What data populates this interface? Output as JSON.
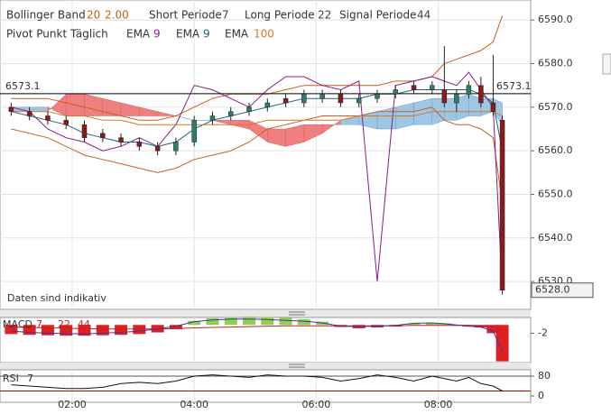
{
  "chart_data": [
    {
      "type": "candlestick",
      "header": [
        {
          "label": "Bollinger Band",
          "params": [
            "20",
            "2.00"
          ],
          "color": "#c8601b"
        },
        {
          "label": "Short Periode",
          "params": [
            "7"
          ],
          "color": "#444444"
        },
        {
          "label": "Long Periode",
          "params": [
            "22"
          ],
          "color": "#444444"
        },
        {
          "label": "Signal Periode",
          "params": [
            "44"
          ],
          "color": "#444444"
        }
      ],
      "pivot": {
        "name": "Pivot Punkt Täglich",
        "value": 6573.1,
        "color": "#000000"
      },
      "note": "Daten sind indikativ",
      "last_price": {
        "value": 6528,
        "label": "6528.0"
      },
      "x": [
        1.0,
        1.3,
        1.6,
        1.9,
        2.2,
        2.5,
        2.8,
        3.1,
        3.4,
        3.7,
        4.0,
        4.3,
        4.6,
        4.9,
        5.2,
        5.5,
        5.8,
        6.1,
        6.4,
        6.7,
        7.0,
        7.3,
        7.6,
        7.9,
        8.1,
        8.3,
        8.5,
        8.7,
        8.9,
        9.05
      ],
      "open": [
        6570,
        6569,
        6568,
        6567,
        6566,
        6564,
        6563,
        6562,
        6561,
        6560,
        6562,
        6567,
        6568,
        6569,
        6570,
        6572,
        6571,
        6572,
        6573,
        6571,
        6572,
        6573,
        6575,
        6574,
        6574,
        6571,
        6573,
        6575,
        6571,
        6567
      ],
      "high": [
        6571,
        6570,
        6569,
        6568,
        6567,
        6565,
        6564,
        6563,
        6562,
        6563,
        6568,
        6569,
        6570,
        6571,
        6572,
        6573,
        6574,
        6574,
        6574,
        6573,
        6574,
        6575,
        6576,
        6576,
        6584,
        6574,
        6576,
        6577,
        6582,
        6568
      ],
      "low": [
        6568,
        6567,
        6566,
        6565,
        6562,
        6562,
        6561,
        6560,
        6559,
        6559,
        6561,
        6566,
        6567,
        6568,
        6569,
        6570,
        6570,
        6571,
        6570,
        6570,
        6571,
        6572,
        6573,
        6573,
        6570,
        6569,
        6572,
        6570,
        6568,
        6527
      ],
      "close": [
        6569,
        6568,
        6567,
        6566,
        6563,
        6563,
        6562,
        6561,
        6560,
        6562,
        6567,
        6568,
        6569,
        6570,
        6571,
        6571,
        6573,
        6573,
        6571,
        6572,
        6573,
        6574,
        6574,
        6575,
        6571,
        6573,
        6575,
        6571,
        6569,
        6528
      ],
      "up_color": "#2e7d6b",
      "down_color": "#8b1a1a",
      "bollinger": {
        "color": "#c8601b",
        "upper": [
          6572,
          6572,
          6572,
          6571,
          6570,
          6569,
          6568,
          6567,
          6567,
          6568,
          6570,
          6572,
          6573,
          6573,
          6573,
          6574,
          6575,
          6575,
          6575,
          6575,
          6575,
          6576,
          6576,
          6577,
          6580,
          6581,
          6582,
          6583,
          6585,
          6591
        ],
        "lower": [
          6565,
          6564,
          6563,
          6561,
          6559,
          6558,
          6557,
          6556,
          6555,
          6556,
          6558,
          6559,
          6560,
          6562,
          6565,
          6566,
          6567,
          6568,
          6568,
          6568,
          6569,
          6569,
          6569,
          6570,
          6567,
          6566,
          6566,
          6565,
          6563,
          6548
        ]
      },
      "cloud": {
        "up_color": "#9ec7e6",
        "down_color": "#f08080",
        "a": [
          6570,
          6570,
          6570,
          6568,
          6568,
          6568,
          6568,
          6568,
          6568,
          6568,
          6567,
          6567,
          6566,
          6565,
          6562,
          6561,
          6562,
          6564,
          6567,
          6568,
          6569,
          6570,
          6571,
          6572,
          6572,
          6572,
          6573,
          6572,
          6572,
          6571
        ],
        "b": [
          6569,
          6569,
          6569,
          6573,
          6573,
          6572,
          6571,
          6570,
          6569,
          6568,
          6567,
          6567,
          6567,
          6567,
          6565,
          6565,
          6566,
          6566,
          6566,
          6566,
          6565,
          6565,
          6566,
          6566,
          6567,
          6567,
          6568,
          6568,
          6569,
          6566
        ]
      },
      "lines": [
        {
          "name": "EMA",
          "period": "9",
          "color": "#8b1a8b",
          "values": [
            6570,
            6569,
            6565,
            6563,
            6562,
            6560,
            6561,
            6563,
            6561,
            6566,
            6575,
            6574,
            6572,
            6570,
            6574,
            6577,
            6577,
            6575,
            6574,
            6576,
            6530,
            6575,
            6576,
            6577,
            6576,
            6575,
            6578,
            6574,
            6570,
            6528
          ]
        },
        {
          "name": "EMA",
          "period": "9",
          "color": "#1a5f80",
          "values": [
            6569,
            6568,
            6567,
            6566,
            6564,
            6563,
            6562,
            6562,
            6561,
            6562,
            6565,
            6567,
            6568,
            6569,
            6570,
            6571,
            6572,
            6572,
            6572,
            6572,
            6573,
            6573,
            6574,
            6574,
            6574,
            6574,
            6574,
            6573,
            6571,
            6560
          ]
        },
        {
          "name": "EMA",
          "period": "100",
          "color": "#d07a2a",
          "values": [
            6569,
            6569,
            6569,
            6568,
            6568,
            6567,
            6567,
            6566,
            6566,
            6566,
            6566,
            6566,
            6566,
            6566,
            6567,
            6567,
            6567,
            6567,
            6567,
            6568,
            6568,
            6568,
            6568,
            6569,
            6569,
            6569,
            6569,
            6569,
            6569,
            6568
          ]
        }
      ],
      "xlim": [
        0.817,
        9.515
      ],
      "xticks": [
        {
          "value": 2,
          "label": "02:00"
        },
        {
          "value": 4,
          "label": "04:00"
        },
        {
          "value": 6,
          "label": "06:00"
        },
        {
          "value": 8,
          "label": "08:00"
        }
      ],
      "ylim": [
        6523.6,
        6594.6
      ],
      "yticks": [
        {
          "value": 6590,
          "label": "6590.0"
        },
        {
          "value": 6580,
          "label": "6580.0"
        },
        {
          "value": 6570,
          "label": "6570.0"
        },
        {
          "value": 6560,
          "label": "6560.0"
        },
        {
          "value": 6550,
          "label": "6550.0"
        },
        {
          "value": 6540,
          "label": "6540.0"
        },
        {
          "value": 6530,
          "label": "6530.0"
        }
      ],
      "grid": true
    },
    {
      "type": "macd",
      "title": "MACD",
      "params": [
        "7",
        "22",
        "44"
      ],
      "x": [
        1.0,
        1.3,
        1.6,
        1.9,
        2.2,
        2.5,
        2.8,
        3.1,
        3.4,
        3.7,
        4.0,
        4.3,
        4.6,
        4.9,
        5.2,
        5.5,
        5.8,
        6.1,
        6.4,
        6.7,
        7.0,
        7.3,
        7.6,
        7.9,
        8.1,
        8.3,
        8.5,
        8.7,
        8.9,
        9.05
      ],
      "histogram": [
        -2.2,
        -2.4,
        -2.5,
        -2.6,
        -2.6,
        -2.5,
        -2.4,
        -2.2,
        -1.8,
        -1.0,
        1.0,
        1.6,
        1.9,
        2.0,
        1.9,
        1.7,
        1.4,
        0.8,
        -0.5,
        -0.8,
        -0.6,
        -0.4,
        0.4,
        0.5,
        0.4,
        -0.2,
        -0.4,
        -0.6,
        -2.0,
        -8.8
      ],
      "macd": [
        -1.5,
        -1.8,
        -2.0,
        -2.1,
        -2.2,
        -2.0,
        -1.8,
        -1.5,
        -1.0,
        -0.3,
        0.8,
        1.2,
        1.4,
        1.4,
        1.3,
        1.1,
        0.9,
        0.5,
        -0.3,
        -0.4,
        -0.3,
        -0.1,
        0.4,
        0.5,
        0.3,
        0,
        -0.3,
        -0.5,
        -1.5,
        -6.5
      ],
      "signal": [
        -0.5,
        -0.6,
        -0.7,
        -0.8,
        -0.9,
        -1.0,
        -1.0,
        -1.0,
        -1.0,
        -0.9,
        -0.7,
        -0.6,
        -0.5,
        -0.4,
        -0.3,
        -0.2,
        -0.2,
        -0.2,
        -0.2,
        -0.2,
        -0.2,
        -0.2,
        -0.1,
        -0.1,
        -0.1,
        -0.1,
        -0.1,
        -0.2,
        -0.3,
        -1.5
      ],
      "pos_color": "#8fd14f",
      "neg_color": "#e02020",
      "macd_color": "#3a3aa0",
      "signal_color": "#c02020",
      "xlim": [
        0.817,
        9.515
      ],
      "ylim": [
        -9.1,
        1.8
      ],
      "yticks": [
        -2
      ]
    },
    {
      "type": "rsi",
      "title": "RSI",
      "params": [
        "7"
      ],
      "x": [
        1.0,
        1.3,
        1.6,
        1.9,
        2.2,
        2.5,
        2.8,
        3.1,
        3.4,
        3.7,
        4.0,
        4.3,
        4.6,
        4.9,
        5.2,
        5.5,
        5.8,
        6.1,
        6.4,
        6.7,
        7.0,
        7.3,
        7.6,
        7.9,
        8.1,
        8.3,
        8.5,
        8.7,
        8.9,
        9.05
      ],
      "values": [
        45,
        40,
        35,
        30,
        30,
        35,
        50,
        55,
        50,
        60,
        80,
        85,
        80,
        75,
        85,
        80,
        80,
        75,
        60,
        70,
        85,
        75,
        60,
        80,
        70,
        60,
        75,
        50,
        40,
        20
      ],
      "color": "#111111",
      "levels": [
        {
          "value": 80,
          "color": "#555555"
        },
        {
          "value": 20,
          "color": "#c00000"
        }
      ],
      "xlim": [
        0.817,
        9.515
      ],
      "ylim": [
        -25.5,
        105.5
      ],
      "yticks": [
        80,
        0
      ]
    }
  ]
}
